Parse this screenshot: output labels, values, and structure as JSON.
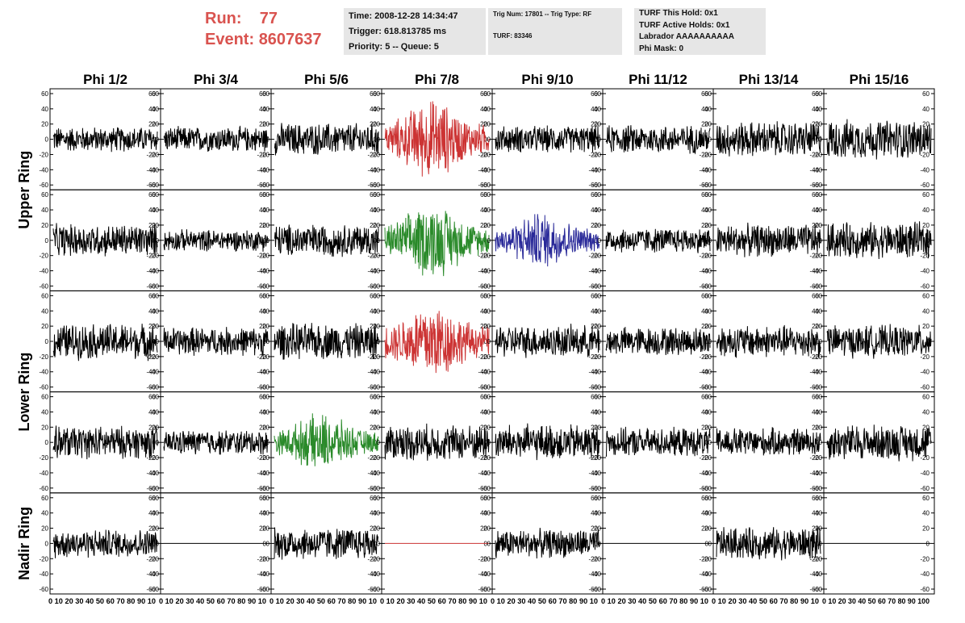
{
  "header": {
    "run_label": "Run:",
    "run_value": "77",
    "event_label": "Event:",
    "event_value": "8607637",
    "time_line": "Time: 2008-12-28 14:34:47",
    "trigger_line": "Trigger: 618.813785 ms",
    "priority_line": "Priority: 5 -- Queue: 5",
    "trig_line": "Trig Num: 17801 -- Trig Type: RF",
    "turf_line": "TURF: 83346",
    "turf_hold_line": "TURF This Hold: 0x1",
    "turf_active_line": "TURF Active Holds: 0x1",
    "labrador_line": "Labrador AAAAAAAAAA",
    "phi_mask_line": "Phi Mask: 0"
  },
  "colors": {
    "header_red": "#d9534f",
    "trace_default": "#000000",
    "trace_red": "#cc3333",
    "trace_green": "#2a8a2a",
    "trace_blue": "#2a2a99"
  },
  "chart_data": {
    "type": "line",
    "columns": [
      "Phi 1/2",
      "Phi 3/4",
      "Phi 5/6",
      "Phi 7/8",
      "Phi 9/10",
      "Phi 11/12",
      "Phi 13/14",
      "Phi 15/16"
    ],
    "ring_labels": [
      "Upper Ring",
      "Lower Ring",
      "Nadir Ring"
    ],
    "rows": 5,
    "ylim": [
      -60,
      60
    ],
    "yticks_left": [
      "60",
      "40",
      "20",
      "0",
      "-20",
      "-40",
      "-60"
    ],
    "yticks_right": [
      "60",
      "40",
      "20",
      "0",
      "-20",
      "-40",
      "-60"
    ],
    "xlim": [
      0,
      100
    ],
    "x_axis_labels": [
      "0 10 20 30 40 50 60 70 80 90 10",
      "0 10 20 30 40 50 60 70 80 90 10",
      "0 10 20 30 40 50 60 70 80 90 10",
      "0 10 20 30 40 50 60 70 80 90 10",
      "0 10 20 30 40 50 60 70 80 90 10",
      "0 10 20 30 40 50 60 70 80 90 10",
      "0 10 20 30 40 50 60 70 80 90 10",
      "0 10 20 30 40 50 60 70 80 90 100"
    ],
    "traces": [
      [
        {
          "amp": 14,
          "color": "black",
          "burst": false
        },
        {
          "amp": 14,
          "color": "black",
          "burst": false
        },
        {
          "amp": 18,
          "color": "black",
          "burst": false
        },
        {
          "amp": 45,
          "color": "red",
          "burst": true
        },
        {
          "amp": 15,
          "color": "black",
          "burst": false
        },
        {
          "amp": 16,
          "color": "black",
          "burst": false
        },
        {
          "amp": 20,
          "color": "black",
          "burst": false
        },
        {
          "amp": 22,
          "color": "black",
          "burst": false
        }
      ],
      [
        {
          "amp": 18,
          "color": "black",
          "burst": false
        },
        {
          "amp": 12,
          "color": "black",
          "burst": false
        },
        {
          "amp": 18,
          "color": "black",
          "burst": false
        },
        {
          "amp": 42,
          "color": "green",
          "burst": true
        },
        {
          "amp": 32,
          "color": "blue",
          "burst": true
        },
        {
          "amp": 14,
          "color": "black",
          "burst": false
        },
        {
          "amp": 18,
          "color": "black",
          "burst": false
        },
        {
          "amp": 20,
          "color": "black",
          "burst": false
        }
      ],
      [
        {
          "amp": 20,
          "color": "black",
          "burst": false
        },
        {
          "amp": 16,
          "color": "black",
          "burst": false
        },
        {
          "amp": 20,
          "color": "black",
          "burst": false
        },
        {
          "amp": 45,
          "color": "red",
          "burst": true
        },
        {
          "amp": 18,
          "color": "black",
          "burst": false
        },
        {
          "amp": 16,
          "color": "black",
          "burst": false
        },
        {
          "amp": 18,
          "color": "black",
          "burst": false
        },
        {
          "amp": 18,
          "color": "black",
          "burst": false
        }
      ],
      [
        {
          "amp": 18,
          "color": "black",
          "burst": false
        },
        {
          "amp": 14,
          "color": "black",
          "burst": false
        },
        {
          "amp": 32,
          "color": "green",
          "burst": true
        },
        {
          "amp": 20,
          "color": "black",
          "burst": false
        },
        {
          "amp": 20,
          "color": "black",
          "burst": false
        },
        {
          "amp": 16,
          "color": "black",
          "burst": false
        },
        {
          "amp": 16,
          "color": "black",
          "burst": false
        },
        {
          "amp": 20,
          "color": "black",
          "burst": false
        }
      ],
      [
        {
          "amp": 16,
          "color": "black",
          "burst": false
        },
        {
          "amp": 0,
          "color": "black",
          "burst": false
        },
        {
          "amp": 18,
          "color": "black",
          "burst": false
        },
        {
          "amp": 0,
          "color": "red",
          "burst": false
        },
        {
          "amp": 16,
          "color": "black",
          "burst": false
        },
        {
          "amp": 0,
          "color": "black",
          "burst": false
        },
        {
          "amp": 18,
          "color": "black",
          "burst": false
        },
        {
          "amp": 0,
          "color": "black",
          "burst": false
        }
      ]
    ]
  }
}
